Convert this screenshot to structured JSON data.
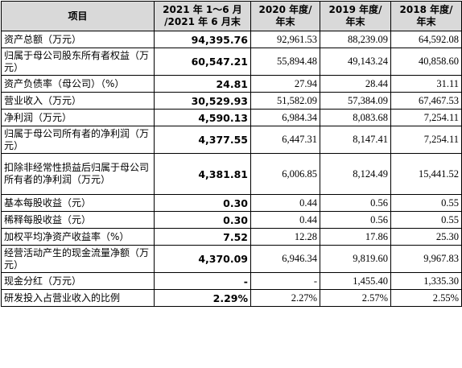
{
  "headers": [
    "项目",
    "2021 年 1～6 月 /2021 年 6 月末",
    "2020 年度/ 年末",
    "2019 年度/ 年末",
    "2018 年度/ 年末"
  ],
  "rows": [
    {
      "label": "资产总额（万元）",
      "values": [
        "94,395.76",
        "92,961.53",
        "88,239.09",
        "64,592.08"
      ]
    },
    {
      "label": "归属于母公司股东所有者权益（万元）",
      "values": [
        "60,547.21",
        "55,894.48",
        "49,143.24",
        "40,858.60"
      ]
    },
    {
      "label": "资产负债率（母公司）（%）",
      "values": [
        "24.81",
        "27.94",
        "28.44",
        "31.11"
      ]
    },
    {
      "label": "营业收入（万元）",
      "values": [
        "30,529.93",
        "51,582.09",
        "57,384.09",
        "67,467.53"
      ]
    },
    {
      "label": "净利润（万元）",
      "values": [
        "4,590.13",
        "6,984.34",
        "8,083.68",
        "7,254.11"
      ]
    },
    {
      "label": "归属于母公司所有者的净利润（万元）",
      "values": [
        "4,377.55",
        "6,447.31",
        "8,147.41",
        "7,254.11"
      ]
    },
    {
      "label": "扣除非经常性损益后归属于母公司所有者的净利润（万元）",
      "values": [
        "4,381.81",
        "6,006.85",
        "8,124.49",
        "15,441.52"
      ]
    },
    {
      "label": "基本每股收益（元）",
      "values": [
        "0.30",
        "0.44",
        "0.56",
        "0.55"
      ]
    },
    {
      "label": "稀释每股收益（元）",
      "values": [
        "0.30",
        "0.44",
        "0.56",
        "0.55"
      ]
    },
    {
      "label": "加权平均净资产收益率（%）",
      "values": [
        "7.52",
        "12.28",
        "17.86",
        "25.30"
      ]
    },
    {
      "label": "经营活动产生的现金流量净额（万元）",
      "values": [
        "4,370.09",
        "6,946.34",
        "9,819.60",
        "9,967.83"
      ]
    },
    {
      "label": "现金分红（万元）",
      "values": [
        "-",
        "-",
        "1,455.40",
        "1,335.30"
      ]
    },
    {
      "label": "研发投入占营业收入的比例",
      "values": [
        "2.29%",
        "2.27%",
        "2.57%",
        "2.55%"
      ]
    }
  ]
}
